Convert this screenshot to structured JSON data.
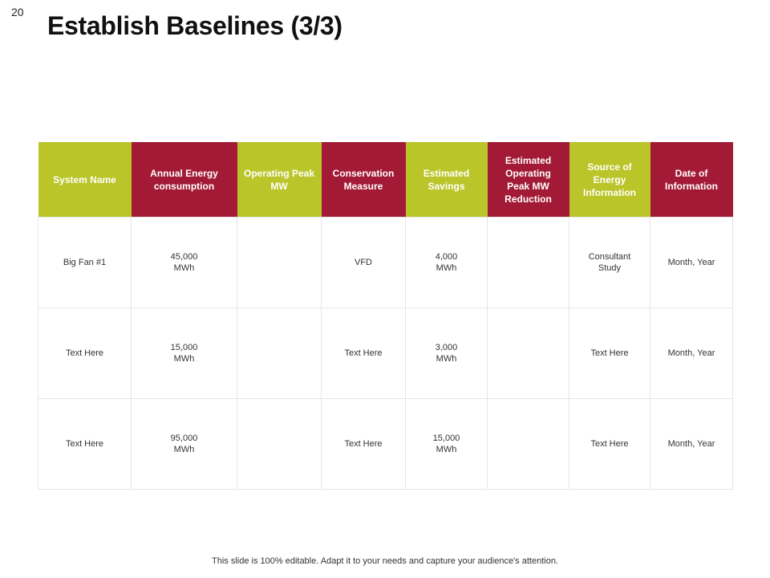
{
  "slide_number": "20",
  "title": "Establish Baselines (3/3)",
  "table": {
    "headers": [
      {
        "label": "System Name",
        "color": "#bac52a"
      },
      {
        "label": "Annual Energy consumption",
        "color": "#a21a35"
      },
      {
        "label": "Operating Peak MW",
        "color": "#bac52a"
      },
      {
        "label": "Conservation Measure",
        "color": "#a21a35"
      },
      {
        "label": "Estimated Savings",
        "color": "#bac52a"
      },
      {
        "label": "Estimated Operating Peak MW Reduction",
        "color": "#a21a35"
      },
      {
        "label": "Source of Energy Information",
        "color": "#bac52a"
      },
      {
        "label": "Date of Information",
        "color": "#a21a35"
      }
    ],
    "rows": [
      [
        "Big Fan #1",
        "45,000\nMWh",
        "",
        "VFD",
        "4,000\nMWh",
        "",
        "Consultant\nStudy",
        "Month, Year"
      ],
      [
        "Text Here",
        "15,000\nMWh",
        "",
        "Text Here",
        "3,000\nMWh",
        "",
        "Text Here",
        "Month, Year"
      ],
      [
        "Text Here",
        "95,000\nMWh",
        "",
        "Text Here",
        "15,000\nMWh",
        "",
        "Text Here",
        "Month, Year"
      ]
    ]
  },
  "footer": "This slide is 100% editable. Adapt it to your needs and capture your audience's attention."
}
